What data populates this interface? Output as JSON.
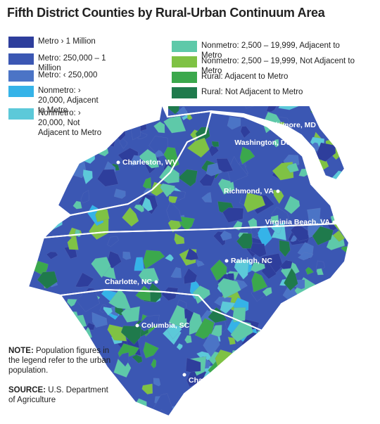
{
  "title": "Fifth District Counties by Rural-Urban Continuum Area",
  "legend": {
    "items": [
      {
        "label": "Metro › 1 Million",
        "color": "#2e3e9c"
      },
      {
        "label": "Metro: 250,000 – 1 Million",
        "color": "#3b57b3"
      },
      {
        "label": "Metro: ‹ 250,000",
        "color": "#4b74c6"
      },
      {
        "label": "Nonmetro: › 20,000, Adjacent to Metro",
        "color": "#35b3e8"
      },
      {
        "label": "Nonmetro: › 20,000, Not Adjacent to Metro",
        "color": "#5cc9d9"
      },
      {
        "label": "Nonmetro: 2,500 – 19,999, Adjacent to Metro",
        "color": "#5ec9a9"
      },
      {
        "label": "Nonmetro: 2,500 – 19,999, Not Adjacent to Metro",
        "color": "#7fc244"
      },
      {
        "label": "Rural: Adjacent to Metro",
        "color": "#3ba84c"
      },
      {
        "label": "Rural: Not Adjacent to Metro",
        "color": "#1f7a4c"
      }
    ]
  },
  "cities": [
    {
      "label": "Baltimore, MD"
    },
    {
      "label": "Washington, DC"
    },
    {
      "label": "Charleston, WV"
    },
    {
      "label": "Richmond, VA"
    },
    {
      "label": "Virginia Beach, VA"
    },
    {
      "label": "Raleigh, NC"
    },
    {
      "label": "Charlotte, NC"
    },
    {
      "label": "Columbia, SC"
    },
    {
      "label": "Charleston, SC"
    }
  ],
  "note": {
    "label": "NOTE:",
    "text": "Population figures in the legend refer to the urban population."
  },
  "source": {
    "label": "SOURCE:",
    "text": "U.S. Department of Agriculture"
  }
}
